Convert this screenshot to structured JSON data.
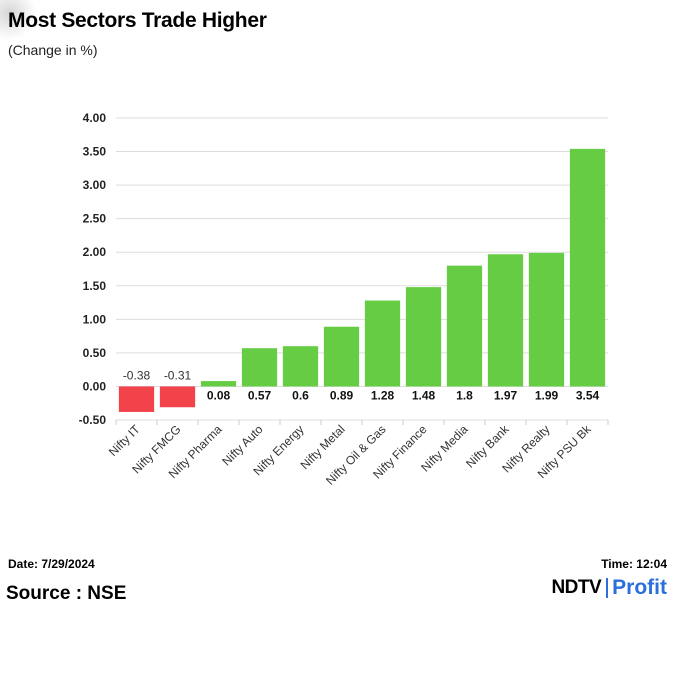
{
  "header": {
    "title": "Most Sectors Trade Higher",
    "subtitle": "(Change in %)"
  },
  "footer": {
    "date": "Date: 7/29/2024",
    "time": "Time: 12:04",
    "source": "Source : NSE",
    "logo_ndtv": "NDTV",
    "logo_profit": "Profit"
  },
  "colors": {
    "positive": "#66cc44",
    "negative": "#f2424a",
    "grid": "#dddddd",
    "brand": "#2a6fdb"
  },
  "chart_data": {
    "type": "bar",
    "title": "Most Sectors Trade Higher",
    "subtitle": "(Change in %)",
    "ylim": [
      -0.5,
      4.0
    ],
    "yticks": [
      "-0.50",
      "0.00",
      "0.50",
      "1.00",
      "1.50",
      "2.00",
      "2.50",
      "3.00",
      "3.50",
      "4.00"
    ],
    "grid": true,
    "categories": [
      "Nifty IT",
      "Nifty FMCG",
      "Nifty Pharma",
      "Nifty Auto",
      "Nifty Energy",
      "Nifty Metal",
      "Nifty Oil & Gas",
      "Nifty Finance",
      "Nifty Media",
      "Nifty Bank",
      "Nifty Realty",
      "Nifty PSU Bk"
    ],
    "values": [
      -0.38,
      -0.31,
      0.08,
      0.57,
      0.6,
      0.89,
      1.28,
      1.48,
      1.8,
      1.97,
      1.99,
      3.54
    ],
    "value_labels": [
      "-0.38",
      "-0.31",
      "0.08",
      "0.57",
      "0.6",
      "0.89",
      "1.28",
      "1.48",
      "1.8",
      "1.97",
      "1.99",
      "3.54"
    ]
  }
}
